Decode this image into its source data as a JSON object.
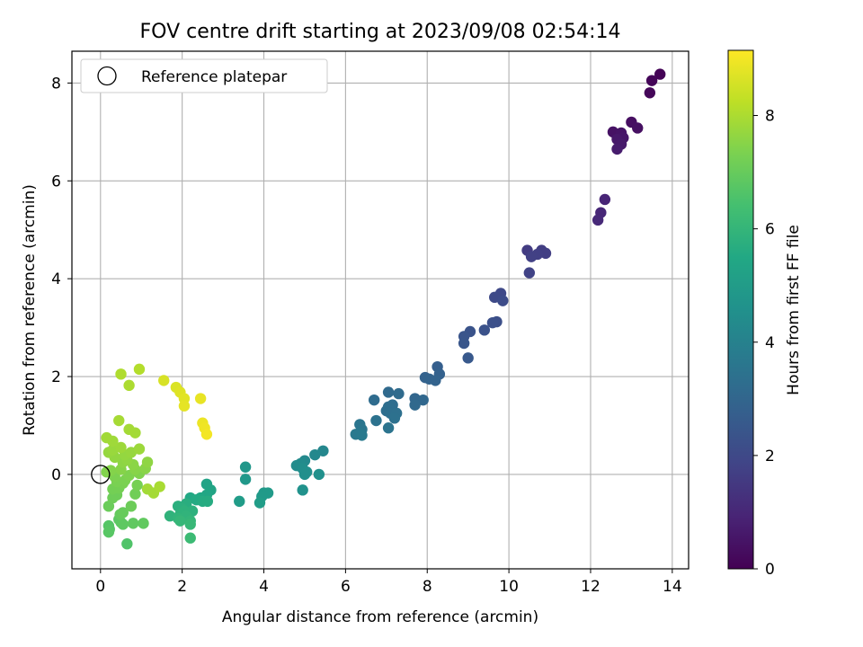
{
  "chart_data": {
    "type": "scatter",
    "title": "FOV centre drift starting at 2023/09/08 02:54:14",
    "xlabel": "Angular distance from reference (arcmin)",
    "ylabel": "Rotation from reference (arcmin)",
    "xlim": [
      -0.7,
      14.4
    ],
    "ylim": [
      -1.93,
      8.65
    ],
    "xticks": [
      0,
      2,
      4,
      6,
      8,
      10,
      12,
      14
    ],
    "yticks": [
      0,
      2,
      4,
      6,
      8
    ],
    "grid": true,
    "legend": {
      "position": "top-left",
      "entries": [
        "Reference platepar"
      ]
    },
    "reference_point": {
      "x": 0,
      "y": 0
    },
    "colorbar": {
      "label": "Hours from first FF file",
      "colormap": "viridis",
      "min": 0,
      "max": 9.15,
      "ticks": [
        0,
        2,
        4,
        6,
        8
      ]
    },
    "points": [
      {
        "x": 13.7,
        "y": 8.18,
        "c": 0.05
      },
      {
        "x": 13.5,
        "y": 8.05,
        "c": 0.1
      },
      {
        "x": 13.45,
        "y": 7.8,
        "c": 0.15
      },
      {
        "x": 13.0,
        "y": 7.2,
        "c": 0.35
      },
      {
        "x": 13.15,
        "y": 7.08,
        "c": 0.4
      },
      {
        "x": 12.55,
        "y": 7.0,
        "c": 0.45
      },
      {
        "x": 12.75,
        "y": 6.98,
        "c": 0.5
      },
      {
        "x": 12.8,
        "y": 6.88,
        "c": 0.55
      },
      {
        "x": 12.65,
        "y": 6.85,
        "c": 0.6
      },
      {
        "x": 12.75,
        "y": 6.75,
        "c": 0.65
      },
      {
        "x": 12.65,
        "y": 6.65,
        "c": 0.7
      },
      {
        "x": 12.35,
        "y": 5.62,
        "c": 0.95
      },
      {
        "x": 12.25,
        "y": 5.35,
        "c": 1.0
      },
      {
        "x": 12.18,
        "y": 5.2,
        "c": 1.05
      },
      {
        "x": 10.45,
        "y": 4.58,
        "c": 1.6
      },
      {
        "x": 10.8,
        "y": 4.58,
        "c": 1.65
      },
      {
        "x": 10.9,
        "y": 4.52,
        "c": 1.7
      },
      {
        "x": 10.7,
        "y": 4.5,
        "c": 1.72
      },
      {
        "x": 10.55,
        "y": 4.45,
        "c": 1.75
      },
      {
        "x": 10.5,
        "y": 4.12,
        "c": 1.8
      },
      {
        "x": 9.8,
        "y": 3.7,
        "c": 2.0
      },
      {
        "x": 9.65,
        "y": 3.62,
        "c": 2.05
      },
      {
        "x": 9.85,
        "y": 3.55,
        "c": 2.1
      },
      {
        "x": 9.7,
        "y": 3.12,
        "c": 2.2
      },
      {
        "x": 9.6,
        "y": 3.1,
        "c": 2.22
      },
      {
        "x": 9.4,
        "y": 2.95,
        "c": 2.3
      },
      {
        "x": 9.05,
        "y": 2.92,
        "c": 2.35
      },
      {
        "x": 8.9,
        "y": 2.82,
        "c": 2.4
      },
      {
        "x": 8.9,
        "y": 2.68,
        "c": 2.45
      },
      {
        "x": 9.0,
        "y": 2.38,
        "c": 2.55
      },
      {
        "x": 8.25,
        "y": 2.2,
        "c": 2.75
      },
      {
        "x": 8.3,
        "y": 2.05,
        "c": 2.8
      },
      {
        "x": 7.95,
        "y": 1.98,
        "c": 2.85
      },
      {
        "x": 8.05,
        "y": 1.95,
        "c": 2.88
      },
      {
        "x": 8.2,
        "y": 1.92,
        "c": 2.9
      },
      {
        "x": 7.7,
        "y": 1.55,
        "c": 3.0
      },
      {
        "x": 7.9,
        "y": 1.52,
        "c": 3.05
      },
      {
        "x": 7.7,
        "y": 1.42,
        "c": 3.1
      },
      {
        "x": 7.05,
        "y": 1.68,
        "c": 3.15
      },
      {
        "x": 7.3,
        "y": 1.65,
        "c": 3.18
      },
      {
        "x": 6.7,
        "y": 1.52,
        "c": 3.22
      },
      {
        "x": 7.15,
        "y": 1.42,
        "c": 3.25
      },
      {
        "x": 7.05,
        "y": 1.38,
        "c": 3.28
      },
      {
        "x": 7.0,
        "y": 1.3,
        "c": 3.3
      },
      {
        "x": 7.1,
        "y": 1.25,
        "c": 3.33
      },
      {
        "x": 7.25,
        "y": 1.25,
        "c": 3.36
      },
      {
        "x": 7.2,
        "y": 1.15,
        "c": 3.4
      },
      {
        "x": 6.75,
        "y": 1.1,
        "c": 3.45
      },
      {
        "x": 7.05,
        "y": 0.95,
        "c": 3.5
      },
      {
        "x": 6.35,
        "y": 1.02,
        "c": 3.55
      },
      {
        "x": 6.4,
        "y": 0.92,
        "c": 3.6
      },
      {
        "x": 6.35,
        "y": 0.85,
        "c": 3.65
      },
      {
        "x": 6.25,
        "y": 0.82,
        "c": 3.7
      },
      {
        "x": 6.4,
        "y": 0.8,
        "c": 3.75
      },
      {
        "x": 5.45,
        "y": 0.48,
        "c": 4.2
      },
      {
        "x": 5.25,
        "y": 0.4,
        "c": 4.25
      },
      {
        "x": 5.0,
        "y": 0.28,
        "c": 4.3
      },
      {
        "x": 4.9,
        "y": 0.22,
        "c": 4.35
      },
      {
        "x": 4.8,
        "y": 0.18,
        "c": 4.4
      },
      {
        "x": 4.95,
        "y": 0.12,
        "c": 4.45
      },
      {
        "x": 5.05,
        "y": 0.05,
        "c": 4.5
      },
      {
        "x": 5.0,
        "y": 0.0,
        "c": 4.52
      },
      {
        "x": 5.35,
        "y": 0.0,
        "c": 4.55
      },
      {
        "x": 4.95,
        "y": -0.32,
        "c": 4.6
      },
      {
        "x": 3.55,
        "y": 0.15,
        "c": 4.8
      },
      {
        "x": 3.55,
        "y": -0.1,
        "c": 4.85
      },
      {
        "x": 4.0,
        "y": -0.38,
        "c": 4.9
      },
      {
        "x": 4.1,
        "y": -0.38,
        "c": 4.92
      },
      {
        "x": 3.95,
        "y": -0.45,
        "c": 4.95
      },
      {
        "x": 3.4,
        "y": -0.55,
        "c": 5.0
      },
      {
        "x": 3.9,
        "y": -0.58,
        "c": 5.05
      },
      {
        "x": 2.6,
        "y": -0.2,
        "c": 5.3
      },
      {
        "x": 2.7,
        "y": -0.32,
        "c": 5.35
      },
      {
        "x": 2.6,
        "y": -0.42,
        "c": 5.4
      },
      {
        "x": 2.45,
        "y": -0.48,
        "c": 5.45
      },
      {
        "x": 2.2,
        "y": -0.48,
        "c": 5.5
      },
      {
        "x": 2.35,
        "y": -0.52,
        "c": 5.55
      },
      {
        "x": 2.5,
        "y": -0.55,
        "c": 5.6
      },
      {
        "x": 2.62,
        "y": -0.55,
        "c": 5.62
      },
      {
        "x": 2.1,
        "y": -0.6,
        "c": 5.7
      },
      {
        "x": 1.9,
        "y": -0.65,
        "c": 5.75
      },
      {
        "x": 2.0,
        "y": -0.7,
        "c": 5.78
      },
      {
        "x": 2.25,
        "y": -0.75,
        "c": 5.8
      },
      {
        "x": 2.05,
        "y": -0.75,
        "c": 5.85
      },
      {
        "x": 1.95,
        "y": -0.82,
        "c": 5.88
      },
      {
        "x": 1.7,
        "y": -0.85,
        "c": 5.9
      },
      {
        "x": 2.1,
        "y": -0.85,
        "c": 5.92
      },
      {
        "x": 1.9,
        "y": -0.9,
        "c": 5.95
      },
      {
        "x": 2.2,
        "y": -0.95,
        "c": 6.0
      },
      {
        "x": 1.95,
        "y": -0.95,
        "c": 6.05
      },
      {
        "x": 2.2,
        "y": -1.02,
        "c": 6.1
      },
      {
        "x": 2.2,
        "y": -1.3,
        "c": 6.2
      },
      {
        "x": 0.65,
        "y": -1.42,
        "c": 6.6
      },
      {
        "x": 0.2,
        "y": -1.05,
        "c": 6.7
      },
      {
        "x": 0.22,
        "y": -1.12,
        "c": 6.72
      },
      {
        "x": 0.2,
        "y": -1.18,
        "c": 6.75
      },
      {
        "x": 0.45,
        "y": -0.92,
        "c": 6.8
      },
      {
        "x": 0.5,
        "y": -0.98,
        "c": 6.82
      },
      {
        "x": 0.55,
        "y": -1.02,
        "c": 6.85
      },
      {
        "x": 0.8,
        "y": -1.0,
        "c": 6.88
      },
      {
        "x": 1.05,
        "y": -1.0,
        "c": 6.9
      },
      {
        "x": 0.48,
        "y": -0.82,
        "c": 6.95
      },
      {
        "x": 0.55,
        "y": -0.78,
        "c": 7.0
      },
      {
        "x": 0.2,
        "y": -0.65,
        "c": 7.05
      },
      {
        "x": 0.75,
        "y": -0.65,
        "c": 7.08
      },
      {
        "x": 0.3,
        "y": -0.48,
        "c": 7.1
      },
      {
        "x": 0.4,
        "y": -0.42,
        "c": 7.12
      },
      {
        "x": 0.85,
        "y": -0.4,
        "c": 7.15
      },
      {
        "x": 0.3,
        "y": -0.3,
        "c": 7.2
      },
      {
        "x": 0.45,
        "y": -0.28,
        "c": 7.22
      },
      {
        "x": 0.9,
        "y": -0.22,
        "c": 7.25
      },
      {
        "x": 0.55,
        "y": -0.18,
        "c": 7.28
      },
      {
        "x": 0.4,
        "y": -0.15,
        "c": 7.3
      },
      {
        "x": 0.6,
        "y": -0.12,
        "c": 7.32
      },
      {
        "x": 0.35,
        "y": -0.05,
        "c": 7.35
      },
      {
        "x": 0.7,
        "y": -0.02,
        "c": 7.38
      },
      {
        "x": 0.95,
        "y": 0.02,
        "c": 7.4
      },
      {
        "x": 0.15,
        "y": 0.05,
        "c": 7.42
      },
      {
        "x": 0.25,
        "y": 0.08,
        "c": 7.45
      },
      {
        "x": 0.5,
        "y": 0.1,
        "c": 7.48
      },
      {
        "x": 0.85,
        "y": 0.1,
        "c": 7.5
      },
      {
        "x": 1.1,
        "y": 0.12,
        "c": 7.52
      },
      {
        "x": 0.8,
        "y": 0.2,
        "c": 7.55
      },
      {
        "x": 0.55,
        "y": 0.25,
        "c": 7.58
      },
      {
        "x": 1.15,
        "y": 0.25,
        "c": 7.6
      },
      {
        "x": 0.65,
        "y": 0.3,
        "c": 7.62
      },
      {
        "x": 0.35,
        "y": 0.35,
        "c": 7.65
      },
      {
        "x": 0.6,
        "y": 0.4,
        "c": 7.68
      },
      {
        "x": 0.2,
        "y": 0.45,
        "c": 7.7
      },
      {
        "x": 0.75,
        "y": 0.45,
        "c": 7.72
      },
      {
        "x": 0.3,
        "y": 0.5,
        "c": 7.75
      },
      {
        "x": 0.95,
        "y": 0.52,
        "c": 7.78
      },
      {
        "x": 0.5,
        "y": 0.55,
        "c": 7.8
      },
      {
        "x": 0.3,
        "y": 0.68,
        "c": 7.82
      },
      {
        "x": 0.15,
        "y": 0.75,
        "c": 7.85
      },
      {
        "x": 0.85,
        "y": 0.85,
        "c": 7.88
      },
      {
        "x": 0.7,
        "y": 0.92,
        "c": 7.9
      },
      {
        "x": 0.45,
        "y": 1.1,
        "c": 7.92
      },
      {
        "x": 0.7,
        "y": 1.82,
        "c": 8.0
      },
      {
        "x": 0.5,
        "y": 2.05,
        "c": 8.05
      },
      {
        "x": 0.95,
        "y": 2.15,
        "c": 8.1
      },
      {
        "x": 1.3,
        "y": -0.38,
        "c": 7.9
      },
      {
        "x": 1.45,
        "y": -0.25,
        "c": 7.95
      },
      {
        "x": 1.15,
        "y": -0.3,
        "c": 7.88
      },
      {
        "x": 1.55,
        "y": 1.92,
        "c": 8.6
      },
      {
        "x": 1.85,
        "y": 1.78,
        "c": 8.65
      },
      {
        "x": 1.95,
        "y": 1.68,
        "c": 8.7
      },
      {
        "x": 2.05,
        "y": 1.55,
        "c": 8.75
      },
      {
        "x": 2.05,
        "y": 1.4,
        "c": 8.8
      },
      {
        "x": 2.45,
        "y": 1.55,
        "c": 8.85
      },
      {
        "x": 2.5,
        "y": 1.05,
        "c": 8.9
      },
      {
        "x": 2.55,
        "y": 0.95,
        "c": 8.95
      },
      {
        "x": 2.6,
        "y": 0.82,
        "c": 9.0
      }
    ]
  }
}
